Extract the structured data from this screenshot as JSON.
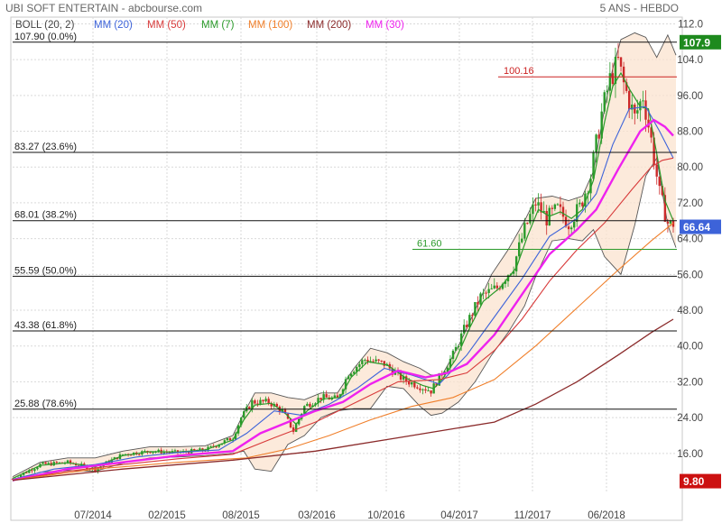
{
  "header": {
    "title": "UBI SOFT ENTERTAIN - abcbourse.com",
    "period": "5 ANS - HEBDO"
  },
  "colors": {
    "bollinger_fill": "#fbe3cf",
    "bollinger_line": "#555555",
    "mm20": "#3d63d9",
    "mm50": "#d83a3a",
    "mm7": "#2a9a2a",
    "mm100": "#f07f2a",
    "mm200": "#8a2a2a",
    "mm30": "#ee22ee",
    "candle_up": "#2a9a2a",
    "candle_down": "#cc2a2a",
    "badge_high": "#1e8a1e",
    "badge_last": "#3d63d9",
    "badge_low": "#cc1111"
  },
  "chart_data": {
    "type": "line",
    "x": [
      "07/2014",
      "02/2015",
      "08/2015",
      "03/2016",
      "10/2016",
      "04/2017",
      "11/2017",
      "06/2018"
    ],
    "y_ticks": [
      16.0,
      24.0,
      32.0,
      40.0,
      48.0,
      56.0,
      64.0,
      72.0,
      80.0,
      88.0,
      96.0,
      104.0,
      112.0
    ],
    "ylim": [
      7.5,
      113.5
    ],
    "legend": [
      {
        "key": "boll",
        "label": "BOLL (20, 2)"
      },
      {
        "key": "mm20",
        "label": "MM (20)"
      },
      {
        "key": "mm50",
        "label": "MM (50)"
      },
      {
        "key": "mm7",
        "label": "MM (7)"
      },
      {
        "key": "mm100",
        "label": "MM (100)"
      },
      {
        "key": "mm200",
        "label": "MM (200)"
      },
      {
        "key": "mm30",
        "label": "MM (30)"
      }
    ],
    "fibonacci_levels": [
      {
        "value": 107.9,
        "label": "107.90  (0.0%)"
      },
      {
        "value": 83.27,
        "label": "83.27  (23.6%)"
      },
      {
        "value": 68.01,
        "label": "68.01  (38.2%)"
      },
      {
        "value": 55.59,
        "label": "55.59  (50.0%)"
      },
      {
        "value": 43.38,
        "label": "43.38  (61.8%)"
      },
      {
        "value": 25.88,
        "label": "25.88  (78.6%)"
      }
    ],
    "resistance": {
      "value": 100.16,
      "label": "100.16"
    },
    "support": {
      "value": 61.6,
      "label": "61.60"
    },
    "badges": {
      "high": "107.9",
      "last": "66.64",
      "low": "9.80"
    },
    "price_path": [
      [
        0,
        10.3
      ],
      [
        10,
        13.5
      ],
      [
        20,
        14.0
      ],
      [
        30,
        12.5
      ],
      [
        40,
        15.8
      ],
      [
        50,
        16.5
      ],
      [
        60,
        16.2
      ],
      [
        70,
        16.8
      ],
      [
        80,
        19.5
      ],
      [
        83,
        24.0
      ],
      [
        87,
        27.5
      ],
      [
        93,
        27.5
      ],
      [
        98,
        25.5
      ],
      [
        102,
        21.0
      ],
      [
        106,
        26.5
      ],
      [
        112,
        28.5
      ],
      [
        118,
        28.2
      ],
      [
        122,
        34.0
      ],
      [
        128,
        37.0
      ],
      [
        135,
        36.0
      ],
      [
        142,
        32.5
      ],
      [
        148,
        31.0
      ],
      [
        152,
        30.0
      ],
      [
        155,
        33.0
      ],
      [
        160,
        38.0
      ],
      [
        165,
        45.0
      ],
      [
        170,
        51.0
      ],
      [
        176,
        53.0
      ],
      [
        182,
        58.0
      ],
      [
        186,
        66.0
      ],
      [
        190,
        72.0
      ],
      [
        194,
        68.5
      ],
      [
        198,
        70.5
      ],
      [
        202,
        67.5
      ],
      [
        206,
        71.0
      ],
      [
        210,
        78.0
      ],
      [
        214,
        92.0
      ],
      [
        217,
        99.5
      ],
      [
        220,
        103.5
      ],
      [
        222,
        98.5
      ],
      [
        226,
        91.0
      ],
      [
        229,
        96.0
      ],
      [
        232,
        86.0
      ],
      [
        235,
        74.0
      ],
      [
        238,
        67.5
      ],
      [
        240,
        66.64
      ]
    ],
    "series": [
      {
        "key": "mm7",
        "points": [
          [
            0,
            10.4
          ],
          [
            10,
            13.3
          ],
          [
            20,
            13.9
          ],
          [
            30,
            13.0
          ],
          [
            40,
            15.5
          ],
          [
            50,
            16.4
          ],
          [
            60,
            16.3
          ],
          [
            70,
            16.8
          ],
          [
            80,
            19.0
          ],
          [
            84,
            23.5
          ],
          [
            88,
            26.8
          ],
          [
            94,
            27.2
          ],
          [
            99,
            25.0
          ],
          [
            103,
            22.5
          ],
          [
            107,
            25.5
          ],
          [
            113,
            28.2
          ],
          [
            119,
            28.5
          ],
          [
            123,
            33.0
          ],
          [
            129,
            36.5
          ],
          [
            136,
            35.8
          ],
          [
            143,
            32.8
          ],
          [
            149,
            31.2
          ],
          [
            153,
            30.5
          ],
          [
            156,
            32.5
          ],
          [
            161,
            37.0
          ],
          [
            166,
            44.0
          ],
          [
            171,
            50.0
          ],
          [
            177,
            53.0
          ],
          [
            183,
            57.5
          ],
          [
            187,
            64.5
          ],
          [
            191,
            70.5
          ],
          [
            195,
            69.0
          ],
          [
            199,
            70.0
          ],
          [
            203,
            68.5
          ],
          [
            207,
            70.5
          ],
          [
            211,
            77.0
          ],
          [
            215,
            90.0
          ],
          [
            218,
            98.0
          ],
          [
            221,
            101.0
          ],
          [
            224,
            97.5
          ],
          [
            228,
            93.5
          ],
          [
            231,
            93.0
          ],
          [
            234,
            83.0
          ],
          [
            237,
            72.5
          ],
          [
            240,
            68.0
          ]
        ]
      },
      {
        "key": "mm20",
        "points": [
          [
            0,
            10.2
          ],
          [
            15,
            12.5
          ],
          [
            30,
            13.5
          ],
          [
            45,
            15.2
          ],
          [
            60,
            16.2
          ],
          [
            75,
            16.8
          ],
          [
            85,
            20.5
          ],
          [
            95,
            25.5
          ],
          [
            105,
            24.5
          ],
          [
            115,
            27.0
          ],
          [
            125,
            30.5
          ],
          [
            135,
            35.0
          ],
          [
            145,
            33.5
          ],
          [
            155,
            31.5
          ],
          [
            165,
            38.0
          ],
          [
            175,
            46.5
          ],
          [
            185,
            55.0
          ],
          [
            195,
            64.5
          ],
          [
            205,
            68.5
          ],
          [
            212,
            74.0
          ],
          [
            218,
            85.0
          ],
          [
            224,
            93.0
          ],
          [
            230,
            93.5
          ],
          [
            235,
            88.0
          ],
          [
            240,
            82.0
          ]
        ]
      },
      {
        "key": "mm30",
        "points": [
          [
            0,
            10.0
          ],
          [
            20,
            12.5
          ],
          [
            40,
            14.0
          ],
          [
            60,
            15.5
          ],
          [
            80,
            16.5
          ],
          [
            90,
            20.5
          ],
          [
            100,
            23.0
          ],
          [
            110,
            25.5
          ],
          [
            120,
            27.5
          ],
          [
            130,
            31.5
          ],
          [
            140,
            34.5
          ],
          [
            150,
            33.0
          ],
          [
            158,
            34.0
          ],
          [
            165,
            36.0
          ],
          [
            175,
            42.5
          ],
          [
            185,
            51.5
          ],
          [
            195,
            60.5
          ],
          [
            205,
            66.0
          ],
          [
            212,
            70.5
          ],
          [
            220,
            79.5
          ],
          [
            228,
            88.0
          ],
          [
            233,
            90.5
          ],
          [
            237,
            89.0
          ],
          [
            240,
            87.0
          ]
        ]
      },
      {
        "key": "mm50",
        "points": [
          [
            0,
            10.0
          ],
          [
            20,
            12.0
          ],
          [
            40,
            13.5
          ],
          [
            60,
            14.8
          ],
          [
            80,
            15.8
          ],
          [
            95,
            19.5
          ],
          [
            110,
            23.0
          ],
          [
            125,
            27.5
          ],
          [
            140,
            32.0
          ],
          [
            155,
            32.5
          ],
          [
            165,
            34.0
          ],
          [
            175,
            39.0
          ],
          [
            185,
            46.0
          ],
          [
            195,
            54.5
          ],
          [
            205,
            61.5
          ],
          [
            215,
            67.5
          ],
          [
            225,
            75.0
          ],
          [
            232,
            80.0
          ],
          [
            236,
            81.5
          ],
          [
            240,
            82.0
          ]
        ]
      },
      {
        "key": "mm100",
        "points": [
          [
            0,
            10.0
          ],
          [
            30,
            12.5
          ],
          [
            60,
            14.0
          ],
          [
            85,
            15.0
          ],
          [
            100,
            17.0
          ],
          [
            115,
            20.0
          ],
          [
            130,
            23.5
          ],
          [
            145,
            26.5
          ],
          [
            160,
            28.5
          ],
          [
            175,
            32.5
          ],
          [
            190,
            40.0
          ],
          [
            205,
            48.5
          ],
          [
            220,
            57.0
          ],
          [
            232,
            63.5
          ],
          [
            240,
            67.5
          ]
        ]
      },
      {
        "key": "mm200",
        "points": [
          [
            0,
            10.0
          ],
          [
            40,
            12.5
          ],
          [
            80,
            14.5
          ],
          [
            110,
            16.5
          ],
          [
            140,
            19.5
          ],
          [
            160,
            21.5
          ],
          [
            175,
            23.0
          ],
          [
            190,
            27.0
          ],
          [
            205,
            32.0
          ],
          [
            220,
            38.0
          ],
          [
            232,
            43.0
          ],
          [
            240,
            46.0
          ]
        ]
      }
    ],
    "boll_upper": [
      [
        0,
        10.8
      ],
      [
        10,
        14.0
      ],
      [
        20,
        15.0
      ],
      [
        30,
        15.0
      ],
      [
        40,
        16.5
      ],
      [
        50,
        17.5
      ],
      [
        60,
        17.5
      ],
      [
        70,
        17.7
      ],
      [
        80,
        20.0
      ],
      [
        84,
        25.0
      ],
      [
        88,
        29.5
      ],
      [
        94,
        29.5
      ],
      [
        100,
        28.5
      ],
      [
        106,
        28.0
      ],
      [
        112,
        29.5
      ],
      [
        118,
        29.5
      ],
      [
        124,
        35.0
      ],
      [
        130,
        39.5
      ],
      [
        136,
        38.5
      ],
      [
        142,
        36.5
      ],
      [
        148,
        35.0
      ],
      [
        152,
        33.5
      ],
      [
        156,
        33.5
      ],
      [
        162,
        40.0
      ],
      [
        168,
        48.0
      ],
      [
        174,
        56.0
      ],
      [
        180,
        61.5
      ],
      [
        186,
        68.0
      ],
      [
        190,
        73.0
      ],
      [
        196,
        73.5
      ],
      [
        202,
        72.5
      ],
      [
        207,
        73.5
      ],
      [
        211,
        79.0
      ],
      [
        215,
        93.0
      ],
      [
        218,
        102.0
      ],
      [
        221,
        108.5
      ],
      [
        226,
        110.0
      ],
      [
        230,
        109.0
      ],
      [
        234,
        104.5
      ],
      [
        238,
        109.5
      ],
      [
        241,
        105.0
      ]
    ],
    "boll_lower": [
      [
        0,
        9.8
      ],
      [
        10,
        11.8
      ],
      [
        20,
        12.2
      ],
      [
        30,
        12.0
      ],
      [
        40,
        13.8
      ],
      [
        50,
        15.0
      ],
      [
        60,
        15.2
      ],
      [
        70,
        15.5
      ],
      [
        80,
        16.0
      ],
      [
        84,
        16.5
      ],
      [
        88,
        12.5
      ],
      [
        94,
        12.0
      ],
      [
        100,
        18.0
      ],
      [
        106,
        20.0
      ],
      [
        112,
        24.0
      ],
      [
        118,
        25.5
      ],
      [
        124,
        26.0
      ],
      [
        130,
        26.0
      ],
      [
        136,
        31.0
      ],
      [
        142,
        30.5
      ],
      [
        148,
        26.5
      ],
      [
        152,
        24.5
      ],
      [
        156,
        25.0
      ],
      [
        162,
        27.5
      ],
      [
        168,
        32.0
      ],
      [
        174,
        38.0
      ],
      [
        180,
        43.0
      ],
      [
        186,
        49.0
      ],
      [
        190,
        55.5
      ],
      [
        196,
        63.5
      ],
      [
        202,
        64.0
      ],
      [
        207,
        63.5
      ],
      [
        211,
        66.0
      ],
      [
        215,
        60.0
      ],
      [
        218,
        58.0
      ],
      [
        221,
        56.0
      ],
      [
        226,
        67.0
      ],
      [
        230,
        78.0
      ],
      [
        234,
        82.0
      ],
      [
        238,
        67.0
      ],
      [
        241,
        62.0
      ]
    ]
  }
}
